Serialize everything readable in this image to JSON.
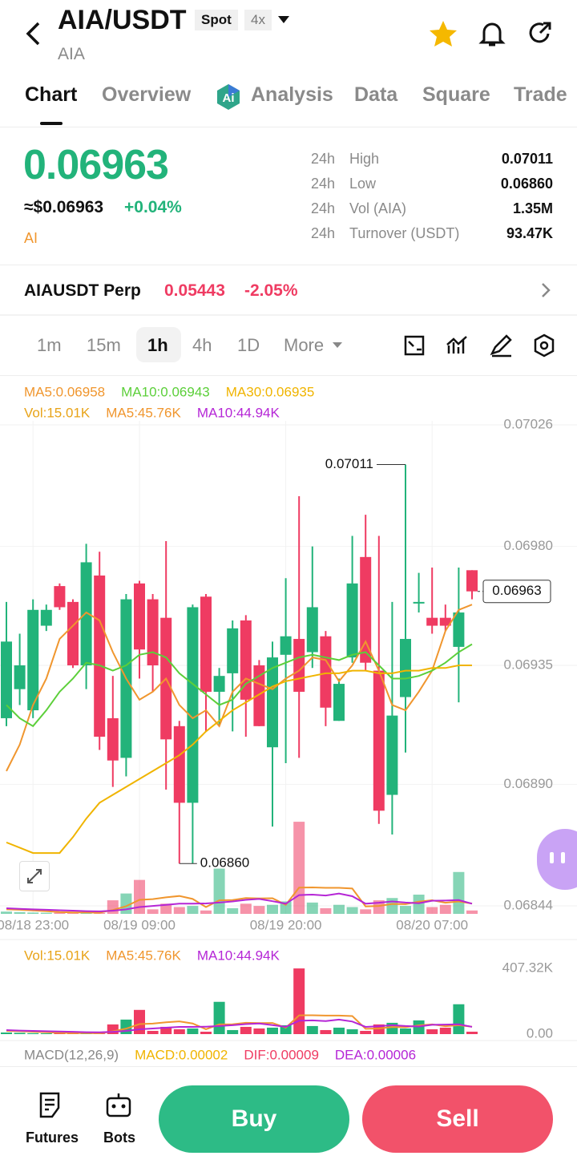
{
  "header": {
    "title": "AIA/USDT",
    "market": "Spot",
    "leverage": "4x",
    "base": "AIA"
  },
  "tabs": [
    "Chart",
    "Overview",
    "Analysis",
    "Data",
    "Square",
    "Trade"
  ],
  "ticker": {
    "price": "0.06963",
    "usd_price": "≈$0.06963",
    "change": "+0.04%",
    "tag": "AI"
  },
  "stats": [
    {
      "period": "24h",
      "label": "High",
      "value": "0.07011"
    },
    {
      "period": "24h",
      "label": "Low",
      "value": "0.06860"
    },
    {
      "period": "24h",
      "label": "Vol (AIA)",
      "value": "1.35M"
    },
    {
      "period": "24h",
      "label": "Turnover (USDT)",
      "value": "93.47K"
    }
  ],
  "perp": {
    "name": "AIAUSDT Perp",
    "price": "0.05443",
    "change": "-2.05%"
  },
  "intervals": [
    "1m",
    "15m",
    "1h",
    "4h",
    "1D",
    "More"
  ],
  "chart_data": {
    "type": "candlestick",
    "categories": [
      null,
      null,
      "08/18 23:00",
      null,
      null,
      null,
      null,
      null,
      null,
      null,
      "08/19 09:00",
      null,
      null,
      null,
      null,
      null,
      null,
      null,
      null,
      null,
      null,
      "08/19 20:00",
      null,
      null,
      null,
      null,
      null,
      null,
      null,
      null,
      null,
      null,
      "08/20 07:00",
      null,
      null,
      null
    ],
    "open": [
      0.06915,
      0.06926,
      0.06918,
      0.0695,
      0.06965,
      0.06959,
      0.06935,
      0.06969,
      0.06915,
      0.069,
      0.06966,
      0.0696,
      0.06953,
      0.06912,
      0.06883,
      0.06961,
      0.06925,
      0.06932,
      0.06952,
      0.06935,
      0.06904,
      0.06939,
      0.06945,
      0.0694,
      0.06946,
      0.06914,
      0.06938,
      0.06976,
      0.06933,
      0.06886,
      0.06923,
      0.06959,
      0.06953,
      0.06953,
      0.06942,
      0.06971
    ],
    "high": [
      0.06959,
      0.06947,
      0.0696,
      0.06958,
      0.06966,
      0.0696,
      0.06981,
      0.06978,
      0.06931,
      0.06962,
      0.06967,
      0.06962,
      0.06982,
      0.06914,
      0.06958,
      0.06962,
      0.06934,
      0.06952,
      0.06954,
      0.06937,
      0.06944,
      0.06968,
      0.06999,
      0.0698,
      0.06948,
      0.0693,
      0.06984,
      0.06992,
      0.06984,
      0.06959,
      0.07011,
      0.0697,
      0.06972,
      0.06958,
      0.06972,
      0.06971
    ],
    "low": [
      0.06912,
      0.0692,
      0.06915,
      0.06948,
      0.06956,
      0.06934,
      0.06926,
      0.06903,
      0.06889,
      0.06893,
      0.0693,
      0.06925,
      0.06888,
      0.0686,
      0.0686,
      0.0691,
      0.06912,
      0.0691,
      0.06908,
      0.06912,
      0.06874,
      0.06898,
      0.069,
      0.06934,
      0.06912,
      0.06914,
      0.06936,
      0.06933,
      0.06875,
      0.06871,
      0.06902,
      0.06955,
      0.06947,
      0.06948,
      0.06921,
      0.0696
    ],
    "close": [
      0.06944,
      0.06935,
      0.06956,
      0.06956,
      0.06957,
      0.06935,
      0.06974,
      0.06908,
      0.06899,
      0.0696,
      0.06941,
      0.06935,
      0.06907,
      0.06883,
      0.06957,
      0.06925,
      0.06931,
      0.06949,
      0.06922,
      0.06912,
      0.06938,
      0.06946,
      0.06925,
      0.06957,
      0.06919,
      0.06928,
      0.06966,
      0.06936,
      0.0688,
      0.06916,
      0.06945,
      0.06959,
      0.0695,
      0.0695,
      0.06955,
      0.06963
    ],
    "up_color": "#22b37a",
    "down_color": "#ef3b62",
    "ylim": [
      0.06844,
      0.07026
    ],
    "yticks": [
      0.07026,
      {
        "value": 0.0698,
        "label": "0.06980"
      },
      0.06935,
      {
        "value": 0.0689,
        "label": "0.06890"
      },
      0.06844
    ],
    "ma_series": [
      {
        "name": "MA5:0.06958",
        "color": "#f0962e",
        "values": [
          0.06895,
          0.06905,
          0.0692,
          0.0693,
          0.06945,
          0.0695,
          0.06955,
          0.06952,
          0.0694,
          0.0693,
          0.06922,
          0.06925,
          0.0693,
          0.0692,
          0.06915,
          0.06918,
          0.06912,
          0.06925,
          0.0693,
          0.06928,
          0.06926,
          0.0693,
          0.06933,
          0.06938,
          0.06937,
          0.06929,
          0.06935,
          0.06944,
          0.06933,
          0.0692,
          0.06918,
          0.06925,
          0.06933,
          0.06948,
          0.06956,
          0.06958
        ]
      },
      {
        "name": "MA10:0.06943",
        "color": "#5ccf3a",
        "values": [
          0.0692,
          0.06915,
          0.06912,
          0.06918,
          0.06925,
          0.0693,
          0.06936,
          0.06935,
          0.06933,
          0.06935,
          0.06939,
          0.0694,
          0.06938,
          0.06932,
          0.06928,
          0.06924,
          0.0692,
          0.06922,
          0.06928,
          0.06931,
          0.06934,
          0.06936,
          0.06938,
          0.06939,
          0.06938,
          0.06937,
          0.06939,
          0.0694,
          0.06935,
          0.0693,
          0.0693,
          0.06931,
          0.06933,
          0.06936,
          0.0694,
          0.06943
        ]
      },
      {
        "name": "MA30:0.06935",
        "color": "#f0b400",
        "values": [
          0.06868,
          0.06866,
          0.06864,
          0.06864,
          0.06864,
          0.0687,
          0.06877,
          0.06883,
          0.06886,
          0.06889,
          0.06892,
          0.06895,
          0.06898,
          0.06901,
          0.06905,
          0.0691,
          0.06914,
          0.06918,
          0.06921,
          0.06924,
          0.06927,
          0.06929,
          0.0693,
          0.06931,
          0.06932,
          0.06932,
          0.06933,
          0.06933,
          0.06932,
          0.06932,
          0.06933,
          0.06933,
          0.06934,
          0.06934,
          0.06935,
          0.06935
        ]
      }
    ],
    "high_marker": "0.07011",
    "low_marker": "0.06860",
    "last_price_marker": "0.06963",
    "volume": {
      "legend": "Vol:15.01K",
      "color": "#e8a317",
      "values": [
        10,
        8,
        6,
        5,
        6,
        8,
        6,
        4,
        60,
        90,
        150,
        20,
        45,
        30,
        35,
        15,
        200,
        25,
        45,
        35,
        40,
        55,
        407,
        50,
        25,
        40,
        30,
        20,
        60,
        70,
        35,
        85,
        30,
        40,
        185,
        15.01
      ],
      "ylim": [
        0,
        407.32
      ],
      "yticks": [
        {
          "value": 407.32,
          "label": "407.32K"
        },
        {
          "value": 0,
          "label": "0.00"
        }
      ],
      "series": [
        {
          "name": "MA5:45.76K",
          "color": "#f0962e",
          "values": [
            20,
            18,
            15,
            12,
            8,
            6,
            6,
            5,
            17,
            34,
            62,
            65,
            73,
            79,
            66,
            30,
            60,
            61,
            70,
            68,
            69,
            40,
            116,
            117,
            115,
            115,
            112,
            33,
            35,
            44,
            43,
            54,
            60,
            49,
            55,
            45.76
          ]
        },
        {
          "name": "MA10:44.94K",
          "color": "#b526d6",
          "values": [
            25,
            22,
            20,
            18,
            16,
            14,
            12,
            11,
            14,
            20,
            30,
            35,
            40,
            45,
            45,
            46,
            50,
            55,
            62,
            66,
            56,
            45,
            83,
            85,
            81,
            90,
            78,
            45,
            49,
            55,
            50,
            47,
            58,
            59,
            61,
            44.94
          ]
        }
      ]
    }
  },
  "macd": {
    "title": "MACD(12,26,9)",
    "macd": "MACD:0.00002",
    "dif": "DIF:0.00009",
    "dea": "DEA:0.00006"
  },
  "actions": {
    "futures": "Futures",
    "bots": "Bots",
    "buy": "Buy",
    "sell": "Sell"
  }
}
